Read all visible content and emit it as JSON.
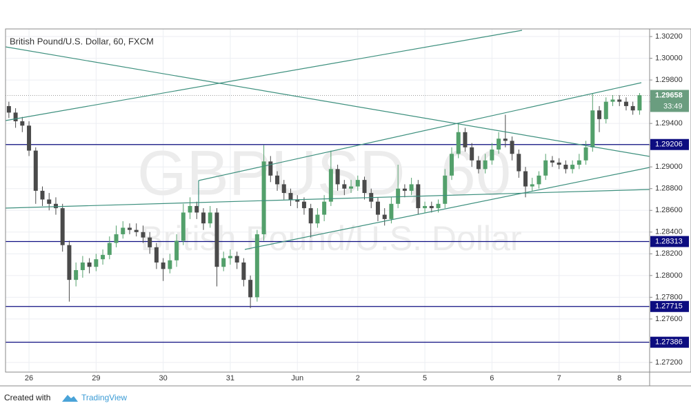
{
  "chart_data": {
    "type": "candlestick",
    "title": "British Pound/U.S. Dollar, 60, FXCM",
    "watermark": {
      "symbol": "GBPUSD, 60",
      "description": "British Pound/U.S. Dollar"
    },
    "categories": [
      null,
      null,
      null,
      "26",
      null,
      null,
      null,
      null,
      null,
      null,
      null,
      null,
      null,
      "29",
      null,
      null,
      null,
      null,
      null,
      null,
      null,
      null,
      null,
      "30",
      null,
      null,
      null,
      null,
      null,
      null,
      null,
      null,
      null,
      "31",
      null,
      null,
      null,
      null,
      null,
      null,
      null,
      null,
      null,
      "Jun",
      null,
      null,
      null,
      null,
      null,
      null,
      null,
      null,
      "2",
      null,
      null,
      null,
      null,
      null,
      null,
      null,
      null,
      null,
      "5",
      null,
      null,
      null,
      null,
      null,
      null,
      null,
      null,
      null,
      "6",
      null,
      null,
      null,
      null,
      null,
      null,
      null,
      null,
      null,
      "7",
      null,
      null,
      null,
      null,
      null,
      null,
      null,
      null,
      "8",
      null,
      null,
      null
    ],
    "open": [
      1.2956,
      1.295,
      1.2942,
      1.2938,
      1.2915,
      1.2878,
      1.287,
      1.2866,
      1.2862,
      1.2828,
      1.2796,
      1.2805,
      1.2812,
      1.2808,
      1.2815,
      1.2819,
      1.283,
      1.2838,
      1.2844,
      1.2842,
      1.284,
      1.2835,
      1.2826,
      1.2812,
      1.2806,
      1.2814,
      1.2832,
      1.2858,
      1.2864,
      1.2858,
      1.2848,
      1.2858,
      1.2808,
      1.2816,
      1.2818,
      1.2812,
      1.2796,
      1.278,
      1.2838,
      1.2905,
      1.2892,
      1.2884,
      1.2876,
      1.287,
      1.2868,
      1.2862,
      1.2848,
      1.2856,
      1.2868,
      1.2898,
      1.2884,
      1.288,
      1.2882,
      1.2888,
      1.2876,
      1.2868,
      1.2856,
      1.2852,
      1.2866,
      1.288,
      1.2878,
      1.2884,
      1.2862,
      1.2864,
      1.2862,
      1.2866,
      1.2892,
      1.2912,
      1.2932,
      1.2918,
      1.2906,
      1.2898,
      1.2906,
      1.2916,
      1.2926,
      1.2924,
      1.2912,
      1.2896,
      1.2882,
      1.2884,
      1.2892,
      1.2906,
      1.2904,
      1.2902,
      1.2898,
      1.2902,
      1.2906,
      1.2918,
      1.2952,
      1.2944,
      1.296,
      1.2962,
      1.296,
      1.2956,
      1.2952
    ],
    "high": [
      1.296,
      1.2954,
      1.2946,
      1.2942,
      1.2918,
      1.2882,
      1.2876,
      1.2872,
      1.2866,
      1.2832,
      1.2812,
      1.2818,
      1.2816,
      1.282,
      1.2824,
      1.2836,
      1.2846,
      1.285,
      1.2848,
      1.2848,
      1.2846,
      1.284,
      1.283,
      1.2816,
      1.282,
      1.2838,
      1.2866,
      1.2872,
      1.2868,
      1.2862,
      1.2864,
      1.2862,
      1.2822,
      1.2824,
      1.2822,
      1.2816,
      1.28,
      1.2842,
      1.292,
      1.291,
      1.2896,
      1.2888,
      1.288,
      1.2874,
      1.2872,
      1.2866,
      1.2862,
      1.2874,
      1.2915,
      1.2902,
      1.2888,
      1.2888,
      1.2892,
      1.2891,
      1.288,
      1.2872,
      1.2862,
      1.2872,
      1.2902,
      1.2884,
      1.289,
      1.2888,
      1.2868,
      1.2868,
      1.287,
      1.2898,
      1.2918,
      1.294,
      1.2936,
      1.2922,
      1.291,
      1.2912,
      1.2922,
      1.2932,
      1.2948,
      1.2928,
      1.2916,
      1.29,
      1.289,
      1.2896,
      1.2912,
      1.291,
      1.2908,
      1.2906,
      1.2906,
      1.2912,
      1.2924,
      1.2968,
      1.2956,
      1.2964,
      1.2966,
      1.2966,
      1.2964,
      1.296,
      1.2968
    ],
    "low": [
      1.2945,
      1.2936,
      1.2932,
      1.291,
      1.2866,
      1.2864,
      1.286,
      1.2856,
      1.2822,
      1.2776,
      1.279,
      1.2798,
      1.2802,
      1.2804,
      1.281,
      1.2815,
      1.2826,
      1.2834,
      1.2838,
      1.2836,
      1.283,
      1.282,
      1.2806,
      1.2795,
      1.2802,
      1.2808,
      1.2828,
      1.2852,
      1.2852,
      1.2842,
      1.2844,
      1.279,
      1.2804,
      1.281,
      1.2806,
      1.279,
      1.277,
      1.2776,
      1.2832,
      1.2886,
      1.2878,
      1.287,
      1.2864,
      1.2862,
      1.2856,
      1.2835,
      1.2844,
      1.285,
      1.2864,
      1.2878,
      1.2874,
      1.2876,
      1.2878,
      1.287,
      1.2862,
      1.285,
      1.2846,
      1.2848,
      1.2862,
      1.2872,
      1.2874,
      1.2856,
      1.2858,
      1.2858,
      1.2858,
      1.2862,
      1.2888,
      1.2908,
      1.2914,
      1.29,
      1.2894,
      1.2894,
      1.2902,
      1.2912,
      1.2918,
      1.2906,
      1.289,
      1.2872,
      1.2878,
      1.288,
      1.2888,
      1.29,
      1.2898,
      1.2894,
      1.2894,
      1.2898,
      1.2902,
      1.2914,
      1.2932,
      1.294,
      1.2956,
      1.2956,
      1.2952,
      1.2948,
      1.2948
    ],
    "close": [
      1.295,
      1.2942,
      1.2938,
      1.2915,
      1.2878,
      1.287,
      1.2866,
      1.2862,
      1.2828,
      1.2796,
      1.2805,
      1.2812,
      1.2808,
      1.2815,
      1.2819,
      1.283,
      1.2838,
      1.2844,
      1.2842,
      1.284,
      1.2835,
      1.2826,
      1.2812,
      1.2806,
      1.2814,
      1.2832,
      1.2858,
      1.2864,
      1.2858,
      1.2848,
      1.2858,
      1.2808,
      1.2816,
      1.2818,
      1.2812,
      1.2796,
      1.278,
      1.2838,
      1.2905,
      1.2892,
      1.2884,
      1.2876,
      1.287,
      1.2868,
      1.2862,
      1.2848,
      1.2856,
      1.2868,
      1.2898,
      1.2884,
      1.288,
      1.2882,
      1.2888,
      1.2876,
      1.2868,
      1.2856,
      1.2852,
      1.2866,
      1.288,
      1.2878,
      1.2884,
      1.2862,
      1.2864,
      1.2862,
      1.2866,
      1.2892,
      1.2912,
      1.2932,
      1.2918,
      1.2906,
      1.2898,
      1.2906,
      1.2916,
      1.2926,
      1.2924,
      1.2912,
      1.2896,
      1.2882,
      1.2884,
      1.2892,
      1.2906,
      1.2904,
      1.2902,
      1.2898,
      1.2902,
      1.2906,
      1.2918,
      1.2952,
      1.2944,
      1.296,
      1.2962,
      1.296,
      1.2956,
      1.2952,
      1.2966
    ],
    "up_color": "#53a06b",
    "down_color": "#4a4a4a",
    "ylim": [
      1.27111,
      1.3027
    ],
    "yticks": [
      {
        "value": 1.272,
        "label": "1.27200"
      },
      {
        "value": 1.274,
        "label": "1.27400"
      },
      {
        "value": 1.276,
        "label": "1.27600"
      },
      {
        "value": 1.278,
        "label": "1.27800"
      },
      {
        "value": 1.28,
        "label": "1.28000"
      },
      {
        "value": 1.282,
        "label": "1.28200"
      },
      {
        "value": 1.284,
        "label": "1.28400"
      },
      {
        "value": 1.286,
        "label": "1.28600"
      },
      {
        "value": 1.288,
        "label": "1.28800"
      },
      {
        "value": 1.29,
        "label": "1.29000"
      },
      {
        "value": 1.292,
        "label": "1.29200"
      },
      {
        "value": 1.294,
        "label": "1.29400"
      },
      {
        "value": 1.296,
        "label": "1.29600"
      },
      {
        "value": 1.298,
        "label": "1.29800"
      },
      {
        "value": 1.3,
        "label": "1.30000"
      },
      {
        "value": 1.302,
        "label": "1.30200"
      }
    ],
    "grid": true,
    "levels": [
      {
        "value": 1.29206,
        "label": "1.29206"
      },
      {
        "value": 1.28313,
        "label": "1.28313"
      },
      {
        "value": 1.27715,
        "label": "1.27715"
      },
      {
        "value": 1.27386,
        "label": "1.27386"
      }
    ],
    "level_color": "#0d0d80",
    "current_price": {
      "value": 1.29658,
      "label": "1.29658"
    },
    "current_color": "#6a9d7f",
    "countdown": "33:49",
    "footer": {
      "text": "Created with",
      "brand": "TradingView"
    }
  }
}
